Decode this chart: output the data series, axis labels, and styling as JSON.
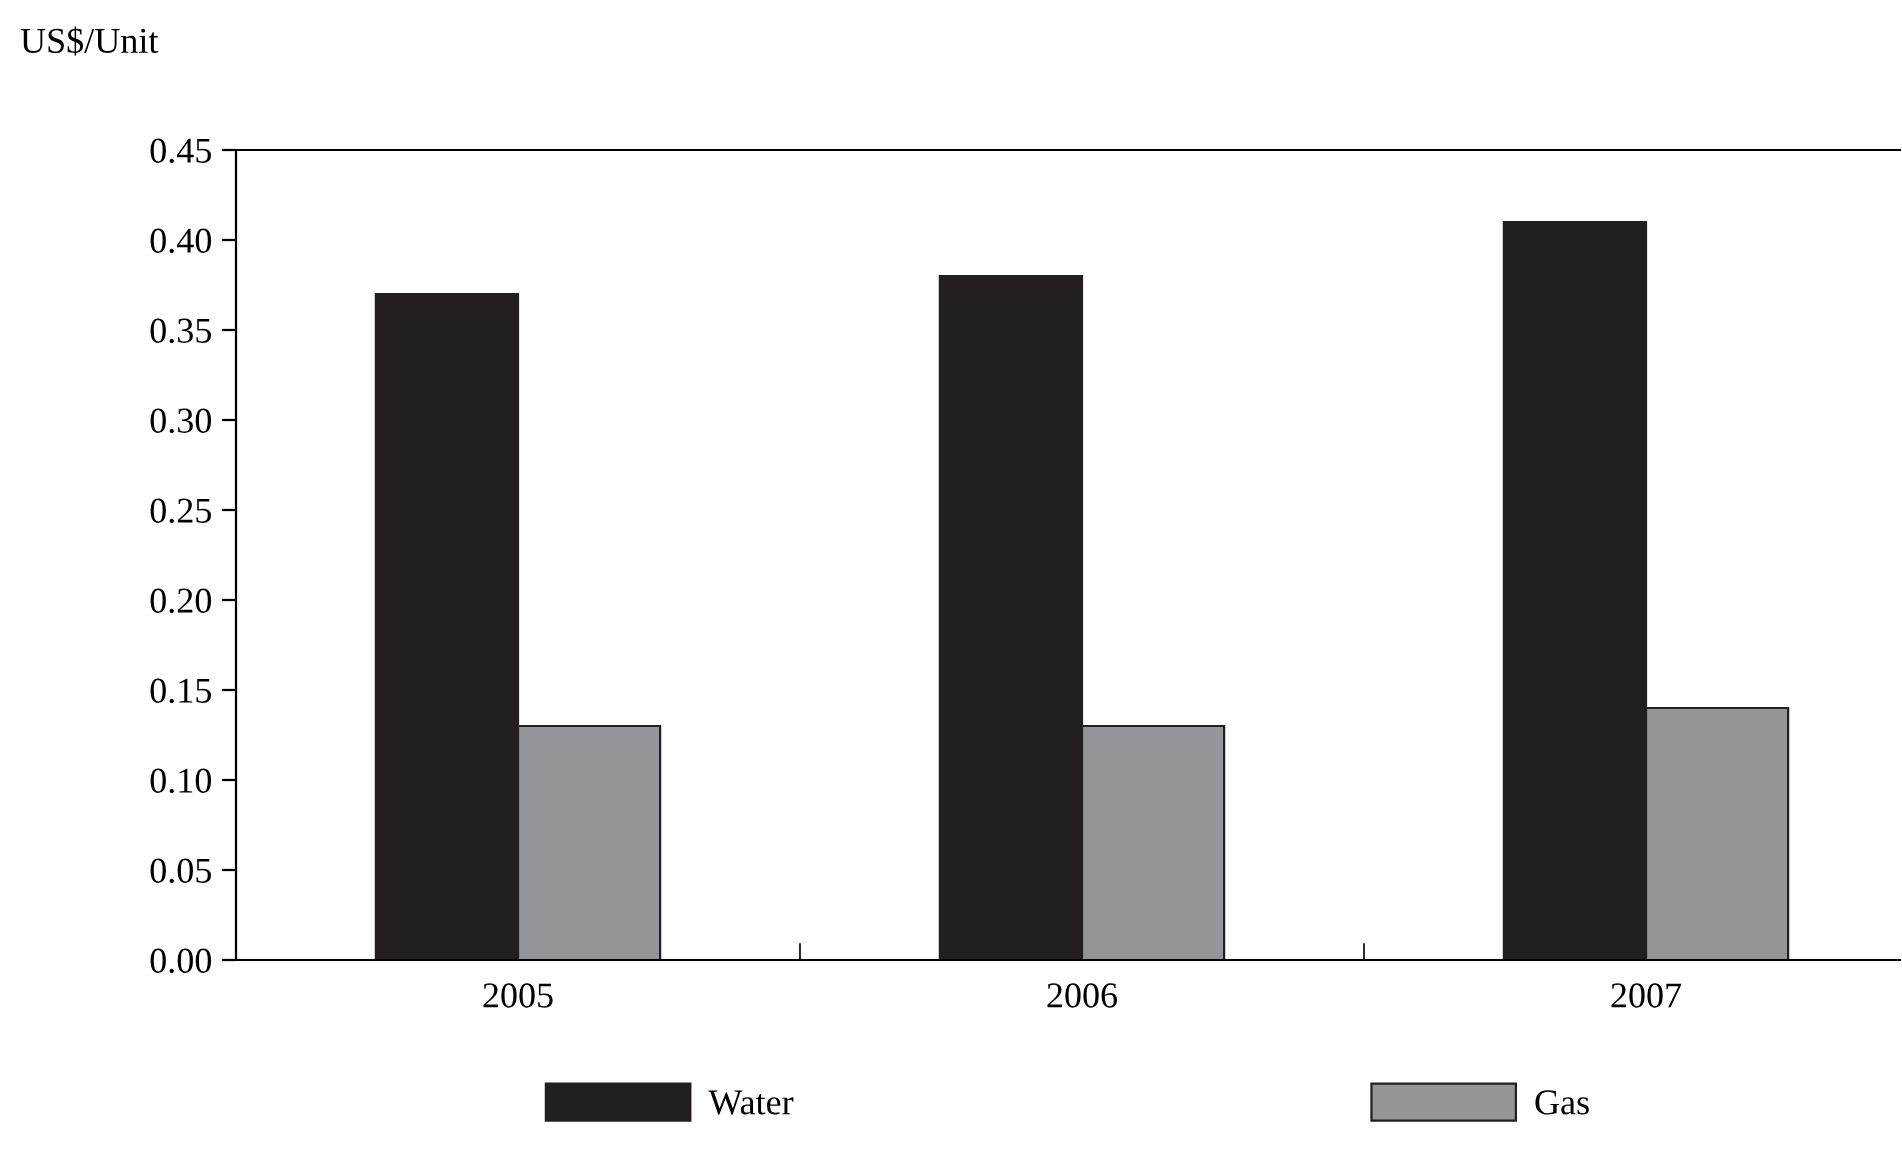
{
  "chart_data": {
    "type": "bar",
    "ylabel": "US$/Unit",
    "categories": [
      "2005",
      "2006",
      "2007"
    ],
    "series": [
      {
        "name": "Water",
        "color": "#231f20",
        "values": [
          0.37,
          0.38,
          0.41
        ]
      },
      {
        "name": "Gas",
        "color": "#939598",
        "values": [
          0.13,
          0.13,
          0.14
        ]
      }
    ],
    "ylim": [
      0,
      0.45
    ],
    "yticks": [
      {
        "value": 0,
        "label": "0.00"
      },
      {
        "value": 0.05,
        "label": "0.05"
      },
      {
        "value": 0.1,
        "label": "0.10"
      },
      {
        "value": 0.15,
        "label": "0.15"
      },
      {
        "value": 0.2,
        "label": "0.20"
      },
      {
        "value": 0.25,
        "label": "0.25"
      },
      {
        "value": 0.3,
        "label": "0.30"
      },
      {
        "value": 0.35,
        "label": "0.35"
      },
      {
        "value": 0.4,
        "label": "0.40"
      },
      {
        "value": 0.45,
        "label": "0.45"
      }
    ],
    "grid": false,
    "legend": "bottom"
  }
}
